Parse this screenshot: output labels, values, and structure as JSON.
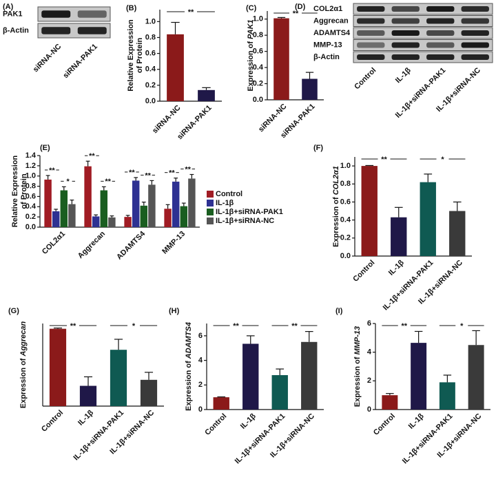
{
  "blots": [
    {
      "panel": "(A)",
      "rows": [
        "PAK1",
        "β-Actin"
      ],
      "lanes": [
        "siRNA-NC",
        "siRNA-PAK1"
      ]
    },
    {
      "panel": "(D)",
      "rows": [
        "COL2α1",
        "Aggrecan",
        "ADAMTS4",
        "MMP-13",
        "β-Actin"
      ],
      "lanes": [
        "Control",
        "IL-1β",
        "IL-1β+siRNA-PAK1",
        "IL-1β+siRNA-NC"
      ]
    }
  ],
  "chart_data": [
    {
      "type": "bar",
      "panel": "(B)",
      "ylabel": [
        "Relative Expression",
        "of Protein"
      ],
      "categories": [
        "siRNA-NC",
        "siRNA-PAK1"
      ],
      "values": [
        0.84,
        0.14
      ],
      "errors": [
        0.15,
        0.03
      ],
      "colors": [
        "#8b1a1a",
        "#1f1848"
      ],
      "ylim": [
        0,
        1.15
      ],
      "yticks": [
        {
          "value": 0,
          "label": "0.0"
        },
        0.2,
        0.4,
        0.6,
        0.8,
        {
          "value": 1,
          "label": "1.0"
        }
      ],
      "brackets": [
        {
          "label": "**",
          "between": [
            0,
            1
          ]
        }
      ]
    },
    {
      "type": "bar",
      "panel": "(C)",
      "ylabel": [
        "Expression of "
      ],
      "ylabel_gene": "PAK1",
      "categories": [
        "siRNA-NC",
        "siRNA-PAK1"
      ],
      "values": [
        1.01,
        0.26
      ],
      "errors": [
        0.01,
        0.08
      ],
      "colors": [
        "#8b1a1a",
        "#1f1848"
      ],
      "ylim": [
        0,
        1.1
      ],
      "yticks": [
        {
          "value": 0,
          "label": "0.0"
        },
        0.2,
        0.4,
        0.6,
        0.8,
        {
          "value": 1,
          "label": "1.0"
        }
      ],
      "brackets": [
        {
          "label": "**",
          "between": [
            0,
            1
          ]
        }
      ]
    },
    {
      "type": "grouped_bar",
      "panel": "(E)",
      "ylabel": [
        "Relative Expression",
        "of Protein"
      ],
      "categories": [
        "COL2α1",
        "Aggrecan",
        "ADAMTS4",
        "MMP-13"
      ],
      "series": [
        {
          "name": "Control",
          "color": "#a01c24",
          "values": [
            0.93,
            1.19,
            0.2,
            0.36
          ],
          "errors": [
            0.08,
            0.1,
            0.03,
            0.08
          ]
        },
        {
          "name": "IL-1β",
          "color": "#2e3192",
          "values": [
            0.31,
            0.21,
            0.91,
            0.89
          ],
          "errors": [
            0.04,
            0.03,
            0.06,
            0.07
          ]
        },
        {
          "name": "IL-1β+siRNA-PAK1",
          "color": "#1a5e20",
          "values": [
            0.72,
            0.72,
            0.42,
            0.41
          ],
          "errors": [
            0.07,
            0.07,
            0.07,
            0.06
          ]
        },
        {
          "name": "IL-1β+siRNA-NC",
          "color": "#555555",
          "values": [
            0.45,
            0.19,
            0.83,
            0.95
          ],
          "errors": [
            0.08,
            0.03,
            0.08,
            0.08
          ]
        }
      ],
      "ylim": [
        0,
        1.4
      ],
      "yticks": [
        {
          "value": 0,
          "label": "0.0"
        },
        0.2,
        0.4,
        0.6,
        0.8,
        {
          "value": 1,
          "label": "1.0"
        },
        1.2,
        1.4
      ],
      "brackets": [
        {
          "label": "**",
          "category": 0,
          "between": [
            0,
            1
          ]
        },
        {
          "label": "*",
          "category": 0,
          "between": [
            2,
            3
          ]
        },
        {
          "label": "**",
          "category": 1,
          "between": [
            0,
            1
          ]
        },
        {
          "label": "**",
          "category": 1,
          "between": [
            2,
            3
          ]
        },
        {
          "label": "**",
          "category": 2,
          "between": [
            0,
            1
          ]
        },
        {
          "label": "**",
          "category": 2,
          "between": [
            2,
            3
          ]
        },
        {
          "label": "**",
          "category": 3,
          "between": [
            0,
            1
          ]
        },
        {
          "label": "**",
          "category": 3,
          "between": [
            2,
            3
          ]
        }
      ],
      "legend": "right"
    },
    {
      "type": "bar",
      "panel": "(F)",
      "ylabel": [
        "Expression of "
      ],
      "ylabel_gene": "COL2α1",
      "categories": [
        "Control",
        "IL-1β",
        "IL-1β+siRNA-PAK1",
        "IL-1β+siRNA-NC"
      ],
      "values": [
        1.0,
        0.43,
        0.82,
        0.5
      ],
      "errors": [
        0.005,
        0.11,
        0.09,
        0.1
      ],
      "colors": [
        "#8b1a1a",
        "#1f1848",
        "#0f5a52",
        "#3a3a3a"
      ],
      "ylim": [
        0,
        1.1
      ],
      "yticks": [
        {
          "value": 0,
          "label": "0.0"
        },
        0.2,
        0.4,
        0.6,
        0.8,
        {
          "value": 1,
          "label": "1.0"
        }
      ],
      "brackets": [
        {
          "label": "**",
          "between": [
            0,
            1
          ]
        },
        {
          "label": "*",
          "between": [
            2,
            3
          ]
        }
      ]
    },
    {
      "type": "bar",
      "panel": "(G)",
      "ylabel": [
        "Expression of "
      ],
      "ylabel_gene": "Aggrecan",
      "categories": [
        "Control",
        "IL-1β",
        "IL-1β+siRNA-PAK1",
        "IL-1β+siRNA-NC"
      ],
      "values": [
        1.03,
        0.27,
        0.75,
        0.35
      ],
      "errors": [
        0.01,
        0.12,
        0.14,
        0.1
      ],
      "colors": [
        "#8b1a1a",
        "#1f1848",
        "#0f5a52",
        "#3a3a3a"
      ],
      "ylim": [
        0,
        1.1
      ],
      "brackets": [
        {
          "label": "**",
          "between": [
            0,
            1
          ]
        },
        {
          "label": "*",
          "between": [
            2,
            3
          ]
        }
      ]
    },
    {
      "type": "bar",
      "panel": "(H)",
      "ylabel": [
        "Expression of "
      ],
      "ylabel_gene": "ADAMTS4",
      "categories": [
        "Control",
        "IL-1β",
        "IL-1β+siRNA-PAK1",
        "IL-1β+siRNA-NC"
      ],
      "values": [
        1.0,
        5.35,
        2.8,
        5.5
      ],
      "errors": [
        0.03,
        0.65,
        0.5,
        0.85
      ],
      "colors": [
        "#8b1a1a",
        "#1f1848",
        "#0f5a52",
        "#3a3a3a"
      ],
      "ylim": [
        0,
        7
      ],
      "yticks": [
        0,
        2,
        4,
        6
      ],
      "brackets": [
        {
          "label": "**",
          "between": [
            0,
            1
          ]
        },
        {
          "label": "**",
          "between": [
            2,
            3
          ]
        }
      ]
    },
    {
      "type": "bar",
      "panel": "(I)",
      "ylabel": [
        "Expression of "
      ],
      "ylabel_gene": "MMP-13",
      "categories": [
        "Control",
        "IL-1β",
        "IL-1β+siRNA-PAK1",
        "IL-1β+siRNA-NC"
      ],
      "values": [
        1.0,
        4.65,
        1.9,
        4.5
      ],
      "errors": [
        0.12,
        0.8,
        0.5,
        1.0
      ],
      "colors": [
        "#8b1a1a",
        "#1f1848",
        "#0f5a52",
        "#3a3a3a"
      ],
      "ylim": [
        0,
        6
      ],
      "yticks": [
        0,
        2,
        4,
        6
      ],
      "brackets": [
        {
          "label": "**",
          "between": [
            0,
            1
          ]
        },
        {
          "label": "*",
          "between": [
            2,
            3
          ]
        }
      ]
    }
  ]
}
